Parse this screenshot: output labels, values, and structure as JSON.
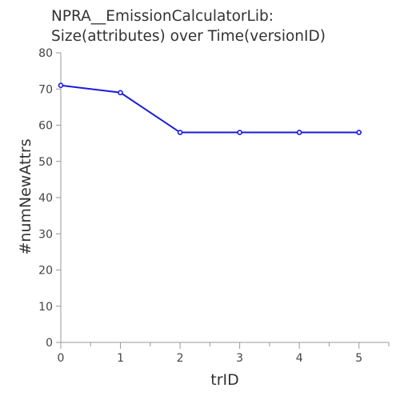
{
  "chart_data": {
    "type": "line",
    "title_line1": "NPRA__EmissionCalculatorLib:",
    "title_line2": "Size(attributes) over Time(versionID)",
    "xlabel": "trID",
    "ylabel": "#numNewAttrs",
    "x": [
      0,
      1,
      2,
      3,
      4,
      5
    ],
    "series": [
      {
        "values": [
          71,
          69,
          58,
          58,
          58,
          58
        ]
      }
    ],
    "xlim": [
      0,
      5.5
    ],
    "ylim": [
      0,
      80
    ],
    "xticks": [
      0,
      1,
      2,
      3,
      4,
      5
    ],
    "yticks": [
      0,
      10,
      20,
      30,
      40,
      50,
      60,
      70,
      80
    ],
    "grid": false,
    "line_color": "#1a1adb",
    "axis_color": "#999999"
  }
}
